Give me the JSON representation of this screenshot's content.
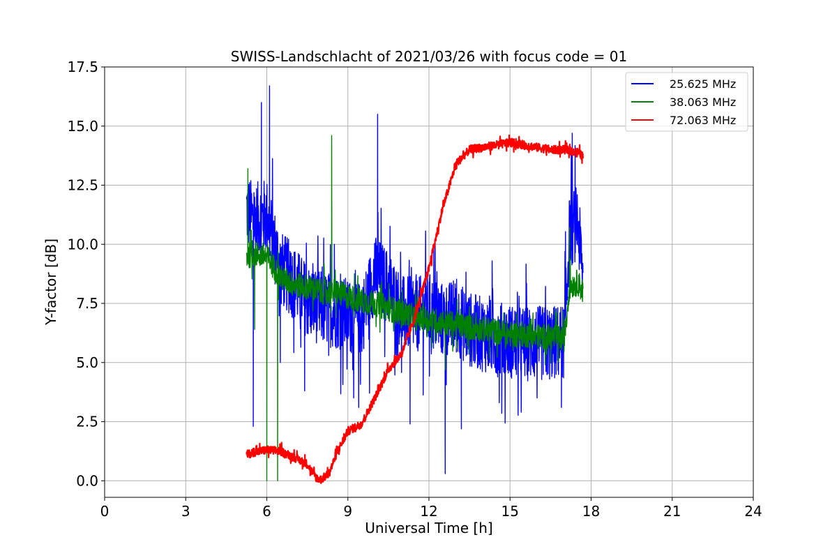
{
  "chart_data": {
    "type": "line",
    "title": "SWISS-Landschlacht of 2021/03/26 with focus code = 01",
    "xlabel": "Universal Time [h]",
    "ylabel": "Y-factor [dB]",
    "xlim": [
      0,
      24
    ],
    "ylim": [
      -0.7,
      17.5
    ],
    "xticks": [
      0,
      3,
      6,
      9,
      12,
      15,
      18,
      21,
      24
    ],
    "yticks": [
      0.0,
      2.5,
      5.0,
      7.5,
      10.0,
      12.5,
      15.0,
      17.5
    ],
    "ytick_labels": [
      "0.0",
      "2.5",
      "5.0",
      "7.5",
      "10.0",
      "12.5",
      "15.0",
      "17.5"
    ],
    "grid": true,
    "legend_position": "top-right",
    "series": [
      {
        "name": "25.625 MHz",
        "color": "#0000ff",
        "noise": 1.6,
        "x": [
          5.25,
          5.5,
          6.0,
          6.5,
          7.0,
          7.5,
          8.0,
          8.5,
          9.0,
          9.5,
          10.0,
          10.5,
          11.0,
          11.5,
          12.0,
          12.5,
          13.0,
          13.5,
          14.0,
          14.5,
          15.0,
          15.5,
          16.0,
          16.5,
          17.0,
          17.2,
          17.5,
          17.7
        ],
        "y": [
          11.5,
          11.0,
          11.2,
          9.0,
          8.4,
          7.6,
          7.3,
          7.2,
          7.0,
          6.8,
          8.8,
          8.2,
          7.1,
          7.0,
          7.2,
          6.8,
          6.9,
          6.4,
          6.2,
          6.0,
          5.9,
          5.8,
          5.8,
          5.8,
          5.9,
          10.5,
          11.0,
          8.5
        ],
        "spikes": [
          {
            "x": 5.5,
            "y": 2.3
          },
          {
            "x": 5.8,
            "y": 16.0
          },
          {
            "x": 6.1,
            "y": 16.7
          },
          {
            "x": 6.5,
            "y": 5.0
          },
          {
            "x": 7.4,
            "y": 3.8
          },
          {
            "x": 8.5,
            "y": 10.0
          },
          {
            "x": 9.4,
            "y": 3.1
          },
          {
            "x": 9.8,
            "y": 3.7
          },
          {
            "x": 10.1,
            "y": 15.5
          },
          {
            "x": 11.3,
            "y": 2.4
          },
          {
            "x": 12.6,
            "y": 0.3
          },
          {
            "x": 13.2,
            "y": 2.2
          },
          {
            "x": 14.6,
            "y": 3.3
          },
          {
            "x": 16.0,
            "y": 3.5
          },
          {
            "x": 16.9,
            "y": 3.1
          },
          {
            "x": 17.3,
            "y": 14.7
          }
        ]
      },
      {
        "name": "38.063 MHz",
        "color": "#008000",
        "noise": 0.55,
        "x": [
          5.25,
          5.5,
          6.0,
          6.5,
          7.0,
          7.5,
          8.0,
          8.5,
          9.0,
          9.5,
          10.0,
          10.5,
          11.0,
          11.5,
          12.0,
          12.5,
          13.0,
          13.5,
          14.0,
          14.5,
          15.0,
          15.5,
          16.0,
          16.5,
          17.0,
          17.2,
          17.5,
          17.7
        ],
        "y": [
          9.5,
          9.6,
          9.5,
          8.6,
          8.3,
          8.2,
          8.0,
          8.0,
          7.8,
          7.6,
          7.5,
          7.3,
          7.1,
          6.9,
          6.8,
          6.7,
          6.6,
          6.5,
          6.4,
          6.3,
          6.2,
          6.2,
          6.1,
          6.1,
          6.0,
          8.2,
          8.4,
          8.0
        ],
        "spikes": [
          {
            "x": 5.3,
            "y": 13.2
          },
          {
            "x": 5.55,
            "y": 6.4
          },
          {
            "x": 6.0,
            "y": 0.0
          },
          {
            "x": 6.4,
            "y": 0.0
          },
          {
            "x": 8.4,
            "y": 14.6
          },
          {
            "x": 12.6,
            "y": 4.7
          },
          {
            "x": 17.2,
            "y": 10.7
          }
        ]
      },
      {
        "name": "72.063 MHz",
        "color": "#ff0000",
        "noise": 0.18,
        "x": [
          5.25,
          5.5,
          6.0,
          6.5,
          7.0,
          7.5,
          7.8,
          8.0,
          8.3,
          8.6,
          9.0,
          9.5,
          10.0,
          10.5,
          11.0,
          11.5,
          12.0,
          12.5,
          13.0,
          13.5,
          14.0,
          14.5,
          15.0,
          15.5,
          16.0,
          16.5,
          17.0,
          17.5,
          17.7
        ],
        "y": [
          1.1,
          1.2,
          1.3,
          1.25,
          1.0,
          0.7,
          0.15,
          0.05,
          0.3,
          1.2,
          2.1,
          2.4,
          3.5,
          4.7,
          5.4,
          7.0,
          9.0,
          11.5,
          13.4,
          14.0,
          14.1,
          14.2,
          14.3,
          14.2,
          14.1,
          14.0,
          14.0,
          13.9,
          13.7
        ],
        "spikes": []
      }
    ]
  }
}
